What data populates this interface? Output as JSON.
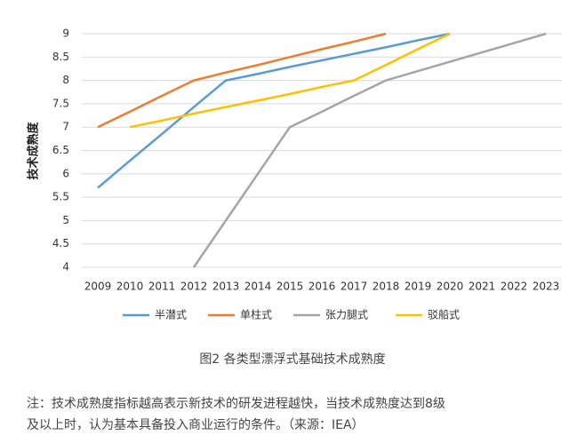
{
  "chart_data": {
    "type": "line",
    "y_label": "技术成熟度",
    "caption": "图2 各类型漂浮式基础技术成熟度",
    "note": [
      "注：技术成熟度指标越高表示新技术的研发进程越快，当技术成熟度达到8级",
      "及以上时，认为基本具备投入商业运行的条件。（来源：IEA）"
    ],
    "categories": [
      "2009",
      "2010",
      "2011",
      "2012",
      "2013",
      "2014",
      "2015",
      "2016",
      "2017",
      "2018",
      "2019",
      "2020",
      "2021",
      "2022",
      "2023"
    ],
    "series": [
      {
        "name": "半潜式",
        "color": "#5b9bd5",
        "values": [
          5.7,
          6.28,
          6.85,
          7.43,
          8,
          8.14,
          8.29,
          8.43,
          8.57,
          8.71,
          8.86,
          9,
          null,
          null,
          null
        ]
      },
      {
        "name": "单柱式",
        "color": "#ed7d31",
        "values": [
          7,
          7.33,
          7.67,
          8,
          8.17,
          8.33,
          8.5,
          8.67,
          8.83,
          9,
          null,
          null,
          null,
          null,
          null
        ]
      },
      {
        "name": "张力腿式",
        "color": "#a5a5a5",
        "values": [
          null,
          null,
          null,
          4,
          5,
          6,
          7,
          7.33,
          7.67,
          8,
          8.2,
          8.4,
          8.6,
          8.8,
          9
        ]
      },
      {
        "name": "驳船式",
        "color": "#ffc000",
        "values": [
          null,
          7,
          7.14,
          7.29,
          7.43,
          7.57,
          7.71,
          7.86,
          8,
          8.33,
          8.67,
          9,
          null,
          null,
          null
        ]
      }
    ],
    "ylim": [
      4,
      9
    ],
    "yticks": [
      4,
      4.5,
      5,
      5.5,
      6,
      6.5,
      7,
      7.5,
      8,
      8.5,
      9
    ],
    "grid": true
  }
}
